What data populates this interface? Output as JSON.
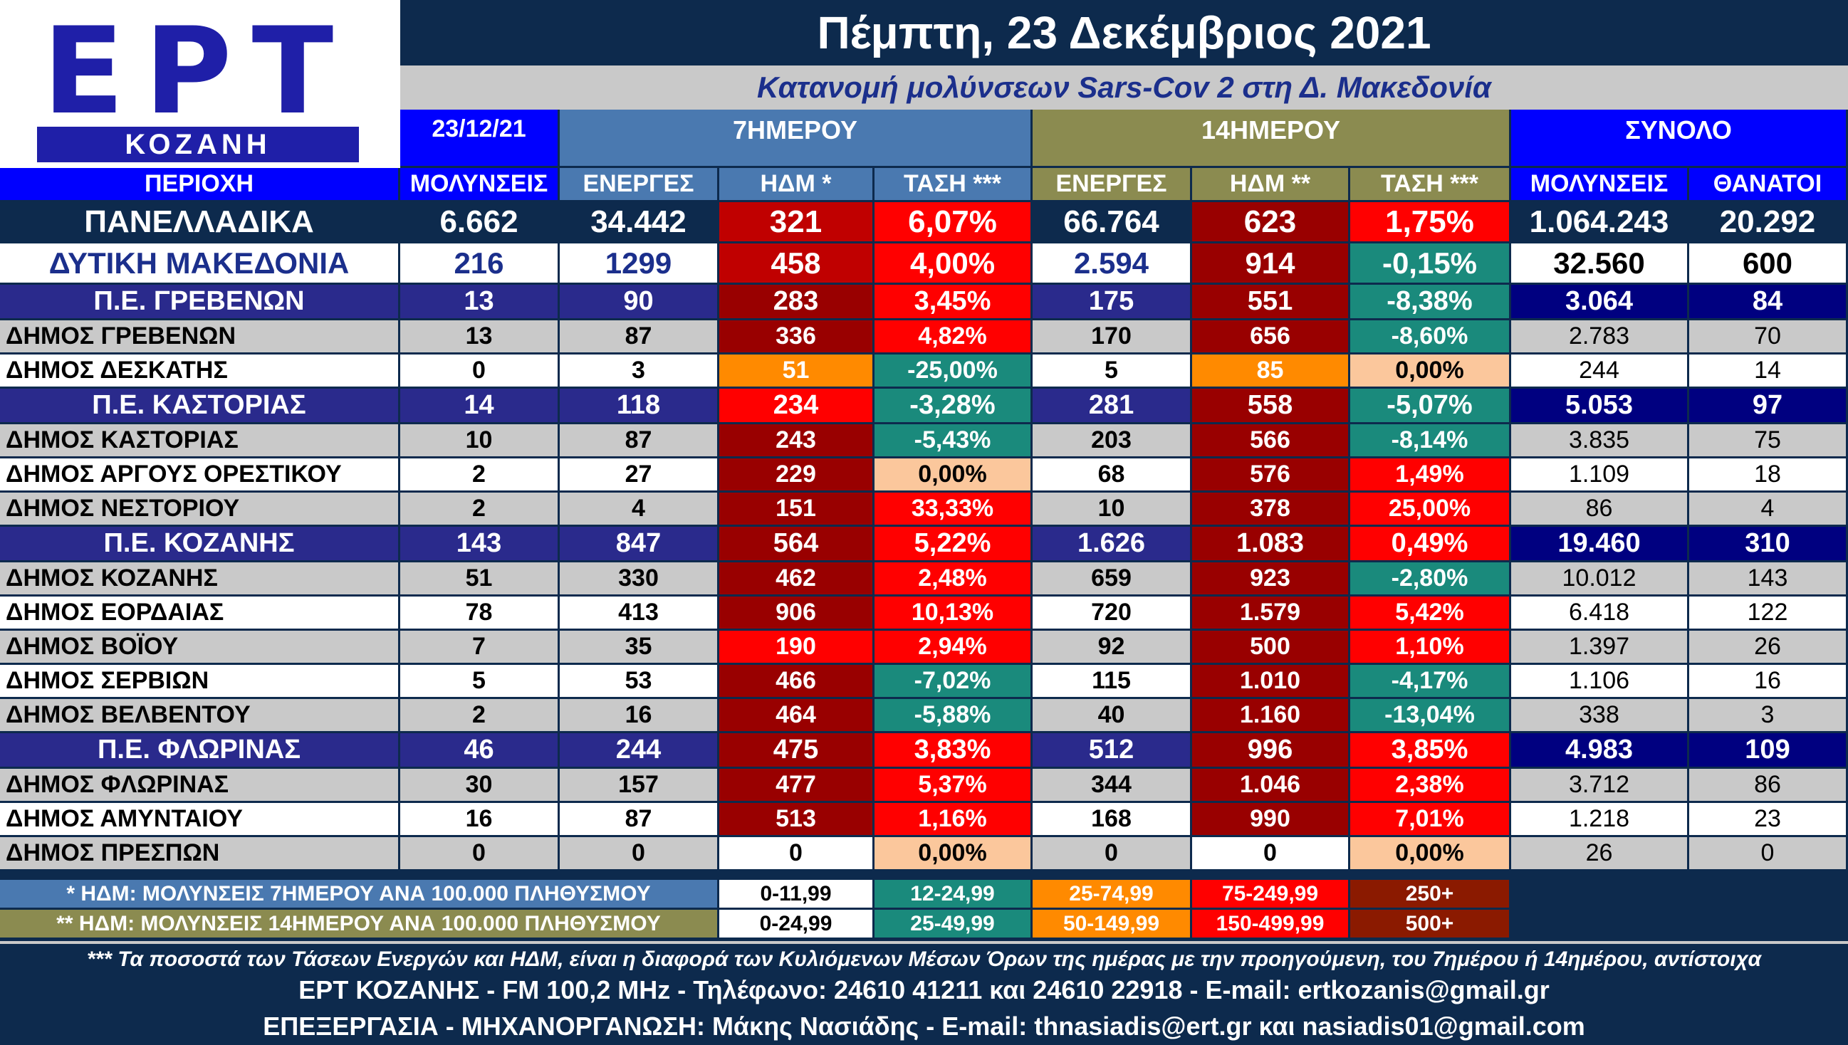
{
  "logo": {
    "main": "ΕΡΤ",
    "sub": "ΚΟΖΑΝΗ"
  },
  "header": {
    "date": "Πέμπτη, 23 Δεκέμβριος 2021",
    "subtitle": "Κατανομή μολύνσεων Sars-Cov 2 στη Δ. Μακεδονία"
  },
  "group_headers": {
    "date": "23/12/21",
    "seven_day": "7ΗΜΕΡΟΥ",
    "fourteen_day": "14ΗΜΕΡΟΥ",
    "total": "ΣΥΝΟΛΟ"
  },
  "columns": [
    "ΠΕΡΙΟΧΗ",
    "ΜΟΛΥΝΣΕΙΣ",
    "ΕΝΕΡΓΕΣ",
    "ΗΔΜ *",
    "ΤΑΣΗ ***",
    "ΕΝΕΡΓΕΣ",
    "ΗΔΜ **",
    "ΤΑΣΗ ***",
    "ΜΟΛΥΝΣΕΙΣ",
    "ΘΑΝΑΤΟΙ"
  ],
  "rows": [
    {
      "kind": "national",
      "cells": [
        "ΠΑΝΕΛΛΑΔΙΚΑ",
        "6.662",
        "34.442",
        "321",
        "6,07%",
        "66.764",
        "623",
        "1,75%",
        "1.064.243",
        "20.292"
      ]
    },
    {
      "kind": "region",
      "cells": [
        "ΔΥΤΙΚΗ ΜΑΚΕΔΟΝΙΑ",
        "216",
        "1299",
        "458",
        "4,00%",
        "2.594",
        "914",
        "-0,15%",
        "32.560",
        "600"
      ]
    },
    {
      "kind": "pe",
      "cells": [
        "Π.Ε. ΓΡΕΒΕΝΩΝ",
        "13",
        "90",
        "283",
        "3,45%",
        "175",
        "551",
        "-8,38%",
        "3.064",
        "84"
      ]
    },
    {
      "kind": "dimos_g",
      "cells": [
        "ΔΗΜΟΣ ΓΡΕΒΕΝΩΝ",
        "13",
        "87",
        "336",
        "4,82%",
        "170",
        "656",
        "-8,60%",
        "2.783",
        "70"
      ]
    },
    {
      "kind": "dimos_w",
      "cells": [
        "ΔΗΜΟΣ ΔΕΣΚΑΤΗΣ",
        "0",
        "3",
        "51",
        "-25,00%",
        "5",
        "85",
        "0,00%",
        "244",
        "14"
      ]
    },
    {
      "kind": "pe",
      "cells": [
        "Π.Ε. ΚΑΣΤΟΡΙΑΣ",
        "14",
        "118",
        "234",
        "-3,28%",
        "281",
        "558",
        "-5,07%",
        "5.053",
        "97"
      ]
    },
    {
      "kind": "dimos_g",
      "cells": [
        "ΔΗΜΟΣ ΚΑΣΤΟΡΙΑΣ",
        "10",
        "87",
        "243",
        "-5,43%",
        "203",
        "566",
        "-8,14%",
        "3.835",
        "75"
      ]
    },
    {
      "kind": "dimos_w",
      "cells": [
        "ΔΗΜΟΣ ΑΡΓΟΥΣ ΟΡΕΣΤΙΚΟΥ",
        "2",
        "27",
        "229",
        "0,00%",
        "68",
        "576",
        "1,49%",
        "1.109",
        "18"
      ]
    },
    {
      "kind": "dimos_g",
      "cells": [
        "ΔΗΜΟΣ ΝΕΣΤΟΡΙΟΥ",
        "2",
        "4",
        "151",
        "33,33%",
        "10",
        "378",
        "25,00%",
        "86",
        "4"
      ]
    },
    {
      "kind": "pe",
      "cells": [
        "Π.Ε. ΚΟΖΑΝΗΣ",
        "143",
        "847",
        "564",
        "5,22%",
        "1.626",
        "1.083",
        "0,49%",
        "19.460",
        "310"
      ]
    },
    {
      "kind": "dimos_g",
      "cells": [
        "ΔΗΜΟΣ ΚΟΖΑΝΗΣ",
        "51",
        "330",
        "462",
        "2,48%",
        "659",
        "923",
        "-2,80%",
        "10.012",
        "143"
      ]
    },
    {
      "kind": "dimos_w",
      "cells": [
        "ΔΗΜΟΣ ΕΟΡΔΑΙΑΣ",
        "78",
        "413",
        "906",
        "10,13%",
        "720",
        "1.579",
        "5,42%",
        "6.418",
        "122"
      ]
    },
    {
      "kind": "dimos_g",
      "cells": [
        "ΔΗΜΟΣ ΒΟΪΟΥ",
        "7",
        "35",
        "190",
        "2,94%",
        "92",
        "500",
        "1,10%",
        "1.397",
        "26"
      ]
    },
    {
      "kind": "dimos_w",
      "cells": [
        "ΔΗΜΟΣ ΣΕΡΒΙΩΝ",
        "5",
        "53",
        "466",
        "-7,02%",
        "115",
        "1.010",
        "-4,17%",
        "1.106",
        "16"
      ]
    },
    {
      "kind": "dimos_g",
      "cells": [
        "ΔΗΜΟΣ ΒΕΛΒΕΝΤΟΥ",
        "2",
        "16",
        "464",
        "-5,88%",
        "40",
        "1.160",
        "-13,04%",
        "338",
        "3"
      ]
    },
    {
      "kind": "pe",
      "cells": [
        "Π.Ε. ΦΛΩΡΙΝΑΣ",
        "46",
        "244",
        "475",
        "3,83%",
        "512",
        "996",
        "3,85%",
        "4.983",
        "109"
      ]
    },
    {
      "kind": "dimos_g",
      "cells": [
        "ΔΗΜΟΣ ΦΛΩΡΙΝΑΣ",
        "30",
        "157",
        "477",
        "5,37%",
        "344",
        "1.046",
        "2,38%",
        "3.712",
        "86"
      ]
    },
    {
      "kind": "dimos_w",
      "cells": [
        "ΔΗΜΟΣ ΑΜΥΝΤΑΙΟΥ",
        "16",
        "87",
        "513",
        "1,16%",
        "168",
        "990",
        "7,01%",
        "1.218",
        "23"
      ]
    },
    {
      "kind": "dimos_g",
      "cells": [
        "ΔΗΜΟΣ ΠΡΕΣΠΩΝ",
        "0",
        "0",
        "0",
        "0,00%",
        "0",
        "0",
        "0,00%",
        "26",
        "0"
      ]
    }
  ],
  "cell_colors": [
    [
      "#c00000",
      "#ff0000",
      "#990000",
      "#ff0000"
    ],
    [
      "#c00000",
      "#ff0000",
      "#990000",
      "#1a8a7c"
    ],
    [
      "#990000",
      "#ff0000",
      "#990000",
      "#1a8a7c"
    ],
    [
      "#990000",
      "#ff0000",
      "#990000",
      "#1a8a7c"
    ],
    [
      "#ff8a00",
      "#1a8a7c",
      "#ff8a00",
      "#fbc79c"
    ],
    [
      "#ff0000",
      "#1a8a7c",
      "#990000",
      "#1a8a7c"
    ],
    [
      "#990000",
      "#1a8a7c",
      "#990000",
      "#1a8a7c"
    ],
    [
      "#990000",
      "#fbc79c",
      "#990000",
      "#ff0000"
    ],
    [
      "#990000",
      "#ff0000",
      "#990000",
      "#ff0000"
    ],
    [
      "#990000",
      "#ff0000",
      "#990000",
      "#ff0000"
    ],
    [
      "#990000",
      "#ff0000",
      "#990000",
      "#1a8a7c"
    ],
    [
      "#990000",
      "#ff0000",
      "#990000",
      "#ff0000"
    ],
    [
      "#ff0000",
      "#ff0000",
      "#990000",
      "#ff0000"
    ],
    [
      "#990000",
      "#1a8a7c",
      "#990000",
      "#1a8a7c"
    ],
    [
      "#990000",
      "#1a8a7c",
      "#990000",
      "#1a8a7c"
    ],
    [
      "#990000",
      "#ff0000",
      "#990000",
      "#ff0000"
    ],
    [
      "#990000",
      "#ff0000",
      "#990000",
      "#ff0000"
    ],
    [
      "#990000",
      "#ff0000",
      "#990000",
      "#ff0000"
    ],
    [
      "#ffffff",
      "#fbc79c",
      "#ffffff",
      "#fbc79c"
    ]
  ],
  "legend": {
    "rows": [
      {
        "label": "* ΗΔΜ: ΜΟΛΥΝΣΕΙΣ 7ΗΜΕΡΟΥ ΑΝΑ 100.000 ΠΛΗΘΥΣΜΟΥ",
        "ranges": [
          "0-11,99",
          "12-24,99",
          "25-74,99",
          "75-249,99",
          "250+"
        ]
      },
      {
        "label": "** ΗΔΜ: ΜΟΛΥΝΣΕΙΣ 14ΗΜΕΡΟΥ ΑΝΑ 100.000 ΠΛΗΘΥΣΜΟΥ",
        "ranges": [
          "0-24,99",
          "25-49,99",
          "50-149,99",
          "150-499,99",
          "500+"
        ]
      }
    ],
    "colors": [
      "#ffffff",
      "#1a8a7c",
      "#ff8a00",
      "#ff0000",
      "#8b1a00"
    ]
  },
  "footer": {
    "note": "*** Τα ποσοστά των Τάσεων Ενεργών και ΗΔΜ, είναι η διαφορά των Κυλιόμενων Μέσων Όρων της ημέρας με την προηγούμενη, του 7ημέρου ή 14ημέρου, αντίστοιχα",
    "contact": "ΕΡΤ ΚΟΖΑΝΗΣ - FM 100,2 MHz - Τηλέφωνο:  24610 41211 και 24610 22918 - E-mail: ertkozanis@gmail.gr",
    "credits": "ΕΠΕΞΕΡΓΑΣΙΑ  -  ΜΗΧΑΝΟΡΓΑΝΩΣΗ: Μάκης Νασιάδης  -   E-mail: thnasiadis@ert.gr και nasiadis01@gmail.com"
  }
}
